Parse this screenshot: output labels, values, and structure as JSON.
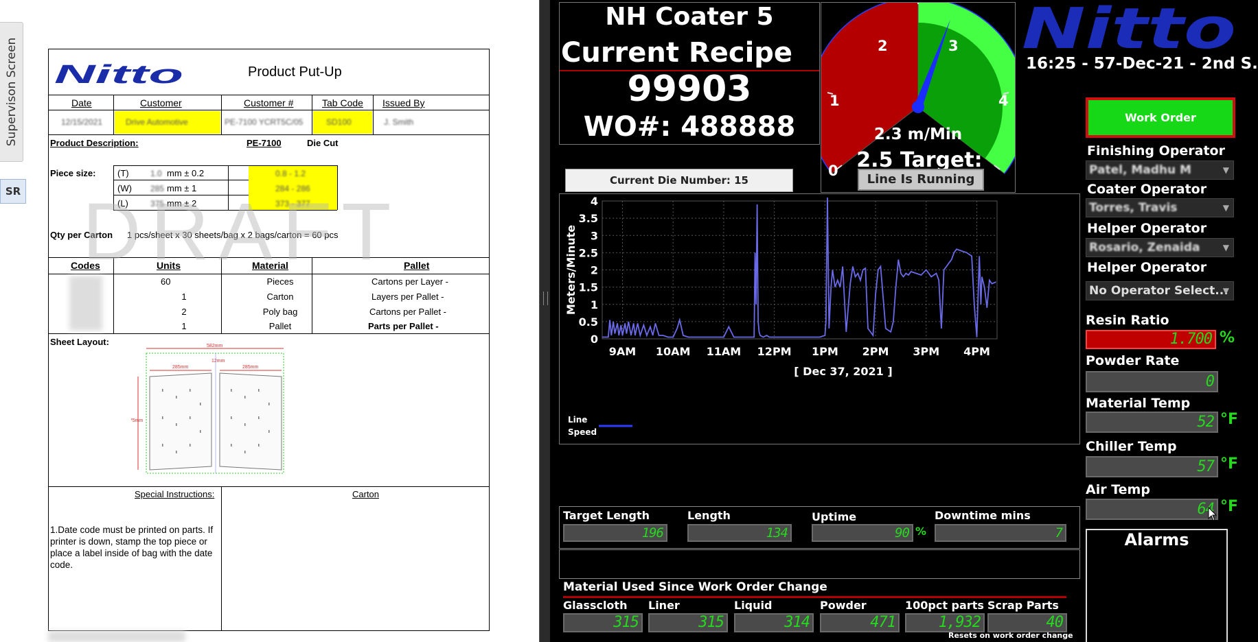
{
  "left_tabs": {
    "supervision": "Supervison Screen",
    "sr": "SR"
  },
  "doc": {
    "logo": "Nitto",
    "title": "Product Put-Up",
    "watermark": "DRAFT",
    "headers": {
      "date": "Date",
      "customer": "Customer",
      "customer_no": "Customer #",
      "tab_code": "Tab Code",
      "issued_by": "Issued By"
    },
    "header_values": {
      "date": "12/15/2021",
      "customer": "Drive Automotive",
      "customer_no": "PE-7100 YCRT5C/05",
      "tab_code": "SD100",
      "issued_by": "J. Smith"
    },
    "product_description_label": "Product Description:",
    "product_code": "PE-7100",
    "product_type": "Die Cut",
    "piece_size_label": "Piece size:",
    "piece_sizes": [
      {
        "dim": "(T)",
        "value": "1.0",
        "tol": "mm ± 0.2",
        "range": "0.8 - 1.2"
      },
      {
        "dim": "(W)",
        "value": "285",
        "tol": "mm ± 1",
        "range": "284 - 286"
      },
      {
        "dim": "(L)",
        "value": "375",
        "tol": "mm ± 2",
        "range": "373 - 377"
      }
    ],
    "qty_label": "Qty per Carton",
    "qty_value": "1 pcs/sheet x 30 sheets/bag x 2 bags/carton = 60 pcs",
    "table_headers": {
      "codes": "Codes",
      "units": "Units",
      "material": "Material",
      "pallet": "Pallet"
    },
    "table_rows": [
      {
        "units": "60",
        "material": "Pieces",
        "pallet": "Cartons per Layer -"
      },
      {
        "units": "1",
        "material": "Carton",
        "pallet": "Layers per Pallet -"
      },
      {
        "units": "2",
        "material": "Poly bag",
        "pallet": "Cartons per Pallet -"
      },
      {
        "units": "1",
        "material": "Pallet",
        "pallet": "Parts per Pallet -"
      }
    ],
    "sheet_layout_label": "Sheet Layout:",
    "sheet_dims": {
      "total": "582mm",
      "left": "285mm",
      "gap": "12mm",
      "right": "285mm",
      "height": "375mm"
    },
    "special_instructions_label": "Special Instructions:",
    "special_instructions": "1.Date code must be printed on parts. If printer is down, stamp the top piece or place a label inside of bag with the date code.",
    "carton_label": "Carton"
  },
  "hmi": {
    "line_name": "NH Coater 5",
    "recipe_label": "Current Recipe",
    "recipe_value": "99903",
    "wo_label": "WO#: 488888",
    "die_number": "Current Die Number: 15",
    "gauge": {
      "ticks": [
        "0",
        "1",
        "2",
        "3",
        "4"
      ],
      "speed": "2.3 m/Min",
      "target": "2.5 Target:",
      "status": "Line Is Running",
      "value": 2.3,
      "max": 4
    },
    "brand": "Nitto",
    "datetime": "16:25 - 57-Dec-21 - 2nd S...",
    "work_order_button": "Work Order",
    "operators": [
      {
        "label": "Finishing Operator",
        "value": "Patel, Madhu M"
      },
      {
        "label": "Coater Operator",
        "value": "Torres, Travis"
      },
      {
        "label": "Helper Operator",
        "value": "Rosario, Zenaida"
      },
      {
        "label": "Helper Operator",
        "value": "No Operator Select..."
      }
    ],
    "readouts": [
      {
        "label": "Resin Ratio",
        "value": "1.700",
        "unit": "%"
      },
      {
        "label": "Powder Rate",
        "value": "0",
        "unit": ""
      },
      {
        "label": "Material Temp",
        "value": "52",
        "unit": "°F"
      },
      {
        "label": "Chiller Temp",
        "value": "57",
        "unit": "°F"
      },
      {
        "label": "Air Temp",
        "value": "64",
        "unit": "°F"
      }
    ],
    "alarms_label": "Alarms",
    "stats": [
      {
        "label": "Target Length",
        "value": "196",
        "unit": ""
      },
      {
        "label": "Length",
        "value": "134",
        "unit": ""
      },
      {
        "label": "Uptime",
        "value": "90",
        "unit": "%"
      },
      {
        "label": "Downtime mins",
        "value": "7",
        "unit": ""
      }
    ],
    "material_title": "Material Used Since Work Order Change",
    "materials": [
      {
        "label": "Glasscloth",
        "value": "315"
      },
      {
        "label": "Liner",
        "value": "315"
      },
      {
        "label": "Liquid",
        "value": "314"
      },
      {
        "label": "Powder",
        "value": "471"
      },
      {
        "label": "100pct parts",
        "value": "1,932"
      },
      {
        "label": "Scrap Parts",
        "value": "40"
      }
    ],
    "resets_note": "Resets on work order change"
  },
  "chart_data": {
    "type": "line",
    "title": "",
    "xlabel": "[ Dec 37, 2021 ]",
    "ylabel": "Meters/Minute",
    "ylim": [
      0,
      4
    ],
    "yticks": [
      "0",
      "0.5",
      "1",
      "1.5",
      "2",
      "2.5",
      "3",
      "3.5",
      "4"
    ],
    "xlim": [
      8.6,
      16.4
    ],
    "xticks": [
      {
        "x": 9,
        "label": "9AM"
      },
      {
        "x": 10,
        "label": "10AM"
      },
      {
        "x": 11,
        "label": "11AM"
      },
      {
        "x": 12,
        "label": "12PM"
      },
      {
        "x": 13,
        "label": "1PM"
      },
      {
        "x": 14,
        "label": "2PM"
      },
      {
        "x": 15,
        "label": "3PM"
      },
      {
        "x": 16,
        "label": "4PM"
      }
    ],
    "grid": true,
    "legend_position": "bottom-left",
    "series": [
      {
        "name": "Line Speed",
        "color": "#6a6ae8",
        "x": [
          8.6,
          8.72,
          8.75,
          8.78,
          8.82,
          8.85,
          8.9,
          8.93,
          8.97,
          9.0,
          9.05,
          9.08,
          9.12,
          9.17,
          9.22,
          9.25,
          9.3,
          9.35,
          9.42,
          9.48,
          9.55,
          9.6,
          9.65,
          9.72,
          9.8,
          9.9,
          10.0,
          10.08,
          10.13,
          10.2,
          10.3,
          10.45,
          10.6,
          10.7,
          10.85,
          11.0,
          11.1,
          11.2,
          11.35,
          11.45,
          11.5,
          11.55,
          11.6,
          11.62,
          11.64,
          11.66,
          11.68,
          11.7,
          11.72,
          11.78,
          11.85,
          11.9,
          12.0,
          12.2,
          12.4,
          12.6,
          12.8,
          12.9,
          13.0,
          13.02,
          13.05,
          13.08,
          13.12,
          13.15,
          13.2,
          13.25,
          13.3,
          13.35,
          13.42,
          13.5,
          13.55,
          13.6,
          13.65,
          13.7,
          13.75,
          13.8,
          13.85,
          13.9,
          13.95,
          14.0,
          14.05,
          14.1,
          14.2,
          14.3,
          14.35,
          14.4,
          14.45,
          14.5,
          14.55,
          14.6,
          14.65,
          14.7,
          14.8,
          14.9,
          15.0,
          15.1,
          15.2,
          15.25,
          15.3,
          15.35,
          15.4,
          15.45,
          15.5,
          15.55,
          15.6,
          15.7,
          15.8,
          15.9,
          15.95,
          16.0,
          16.05,
          16.08,
          16.1,
          16.15,
          16.2,
          16.25,
          16.3,
          16.38
        ],
        "y": [
          0.05,
          0.05,
          0.55,
          0.1,
          0.5,
          0.15,
          0.45,
          0.1,
          0.4,
          0.1,
          0.45,
          0.15,
          0.5,
          0.1,
          0.45,
          0.1,
          0.45,
          0.1,
          0.4,
          0.1,
          0.35,
          0.1,
          0.45,
          0.1,
          0.1,
          0.05,
          0.05,
          0.3,
          0.55,
          0.1,
          0.05,
          0.05,
          0.05,
          0.05,
          0.05,
          0.05,
          0.35,
          0.05,
          0.05,
          0.05,
          0.05,
          0.05,
          0.05,
          2.5,
          1.0,
          3.9,
          0.5,
          0.2,
          0.1,
          0.05,
          0.1,
          0.05,
          0.05,
          0.05,
          0.05,
          0.05,
          0.05,
          0.05,
          0.1,
          0.5,
          4.1,
          0.3,
          1.5,
          2.0,
          1.5,
          1.7,
          1.5,
          2.1,
          0.2,
          1.6,
          2.1,
          1.8,
          1.9,
          1.7,
          2.0,
          2.05,
          0.3,
          0.2,
          0.1,
          1.3,
          2.0,
          2.1,
          0.3,
          0.2,
          0.5,
          1.5,
          2.3,
          1.9,
          1.8,
          1.9,
          1.85,
          1.95,
          1.9,
          1.85,
          2.0,
          1.8,
          1.9,
          1.7,
          0.3,
          2.0,
          2.1,
          2.2,
          2.3,
          2.5,
          2.6,
          2.55,
          2.5,
          2.4,
          1.0,
          0.05,
          2.4,
          1.0,
          1.8,
          1.5,
          0.9,
          1.7,
          1.6,
          1.65
        ]
      }
    ]
  }
}
